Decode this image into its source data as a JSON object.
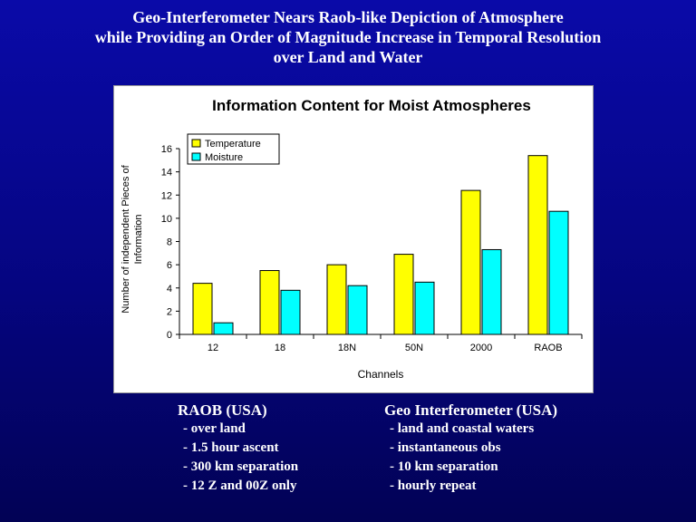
{
  "slide": {
    "title_lines": [
      "Geo-Interferometer  Nears Raob-like Depiction of Atmosphere",
      "while Providing an Order of Magnitude Increase in Temporal Resolution",
      "over Land and Water"
    ]
  },
  "chart_data": {
    "type": "bar",
    "title": "Information Content for Moist Atmospheres",
    "xlabel": "Channels",
    "ylabel_lines": [
      "Number of independent Pieces of",
      "Information"
    ],
    "categories": [
      "12",
      "18",
      "18N",
      "50N",
      "2000",
      "RAOB"
    ],
    "series": [
      {
        "name": "Temperature",
        "color": "#ffff00",
        "values": [
          4.4,
          5.5,
          6.0,
          6.9,
          12.4,
          15.4
        ]
      },
      {
        "name": "Moisture",
        "color": "#00ffff",
        "values": [
          1.0,
          3.8,
          4.2,
          4.5,
          7.3,
          10.6
        ]
      }
    ],
    "ylim": [
      0,
      16
    ],
    "yticks": [
      0,
      2,
      4,
      6,
      8,
      10,
      12,
      14,
      16
    ],
    "grid": false,
    "legend_position": "top-left"
  },
  "comparison": {
    "left": {
      "heading": "RAOB (USA)",
      "items": [
        "- over land",
        "- 1.5 hour ascent",
        "- 300 km separation",
        "- 12 Z and 00Z only"
      ]
    },
    "right": {
      "heading": "Geo Interferometer (USA)",
      "items": [
        "- land and coastal waters",
        "- instantaneous obs",
        "- 10 km separation",
        "- hourly repeat"
      ]
    }
  }
}
